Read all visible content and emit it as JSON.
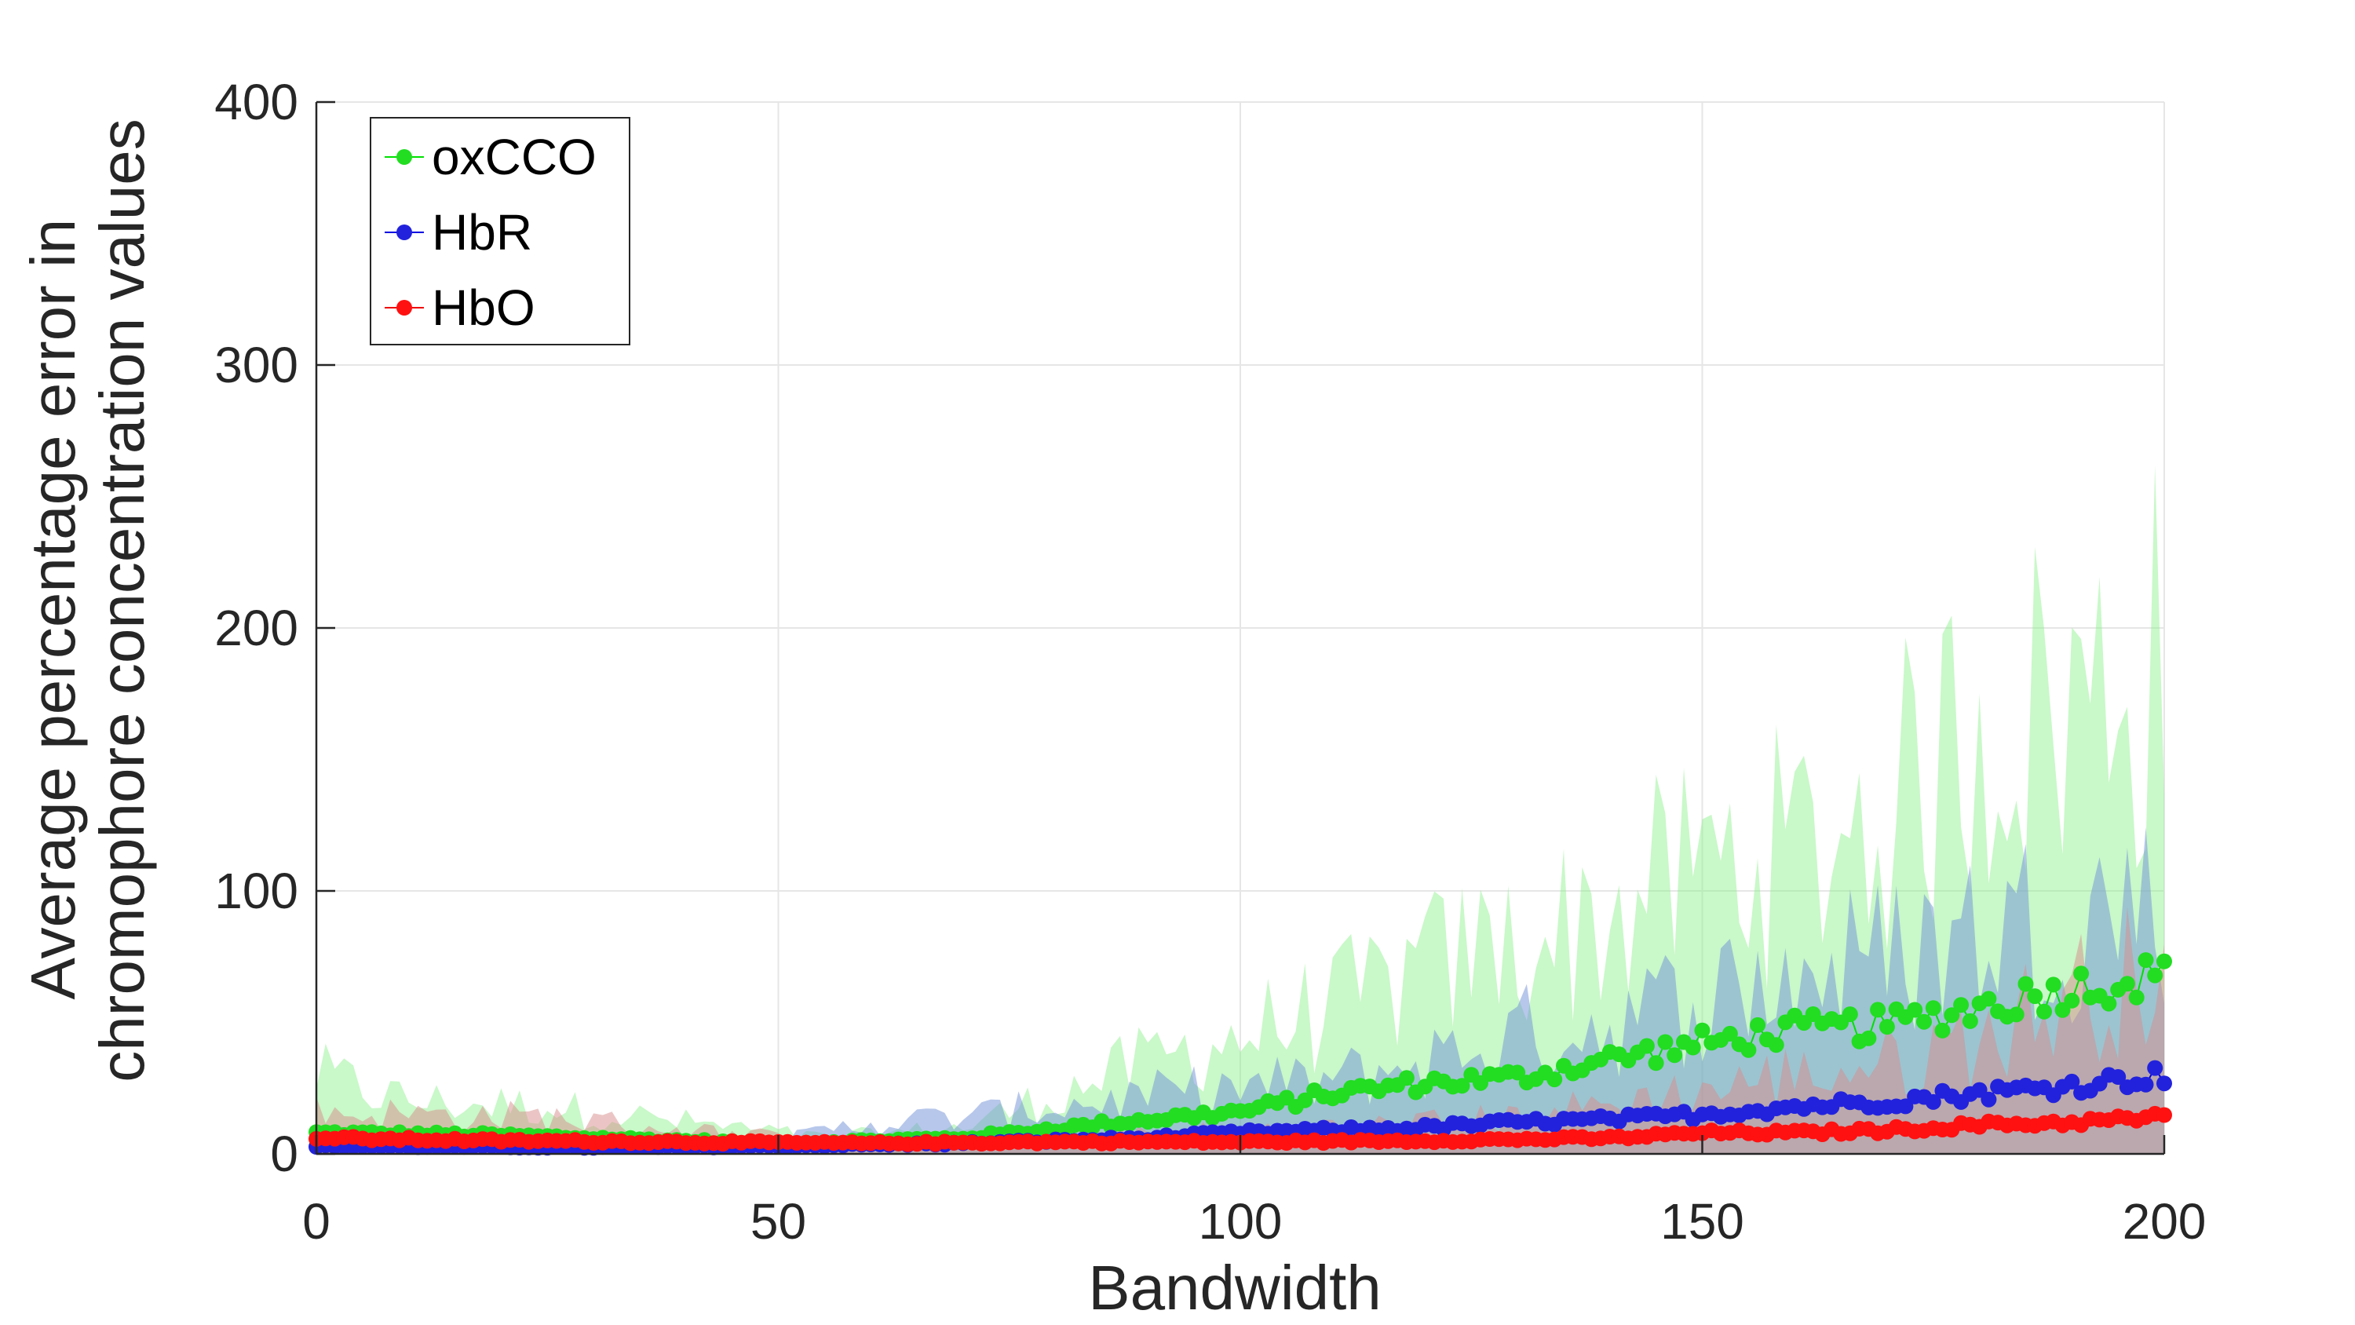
{
  "chart_data": {
    "type": "line",
    "xlabel": "Bandwidth",
    "ylabel_lines": [
      "Average percentage error in",
      "chromophore concentration values"
    ],
    "xlim": [
      0,
      200
    ],
    "ylim": [
      0,
      400
    ],
    "xticks": [
      0,
      50,
      100,
      150,
      200
    ],
    "yticks": [
      0,
      100,
      200,
      300,
      400
    ],
    "grid": true,
    "legend_position": "top-left",
    "series": [
      {
        "name": "oxCCO",
        "color": "#00e000",
        "marker_color": "#22dd22",
        "band_color": "#88f088",
        "control_mean": [
          [
            0,
            8
          ],
          [
            20,
            7
          ],
          [
            50,
            4
          ],
          [
            70,
            6
          ],
          [
            90,
            13
          ],
          [
            100,
            16
          ],
          [
            110,
            23
          ],
          [
            120,
            27
          ],
          [
            130,
            29
          ],
          [
            140,
            36
          ],
          [
            150,
            42
          ],
          [
            160,
            47
          ],
          [
            170,
            49
          ],
          [
            180,
            56
          ],
          [
            190,
            63
          ],
          [
            200,
            68
          ]
        ],
        "control_band": [
          [
            0,
            30
          ],
          [
            10,
            20
          ],
          [
            25,
            18
          ],
          [
            40,
            12
          ],
          [
            55,
            6
          ],
          [
            70,
            10
          ],
          [
            90,
            35
          ],
          [
            100,
            45
          ],
          [
            110,
            55
          ],
          [
            120,
            70
          ],
          [
            130,
            80
          ],
          [
            140,
            90
          ],
          [
            150,
            110
          ],
          [
            160,
            115
          ],
          [
            170,
            130
          ],
          [
            180,
            165
          ],
          [
            190,
            170
          ],
          [
            200,
            190
          ]
        ]
      },
      {
        "name": "HbR",
        "color": "#0000e0",
        "marker_color": "#2222dd",
        "band_color": "#6f8fd8",
        "control_mean": [
          [
            0,
            3
          ],
          [
            30,
            2.5
          ],
          [
            50,
            3
          ],
          [
            70,
            4
          ],
          [
            90,
            6
          ],
          [
            100,
            8
          ],
          [
            110,
            9
          ],
          [
            120,
            10
          ],
          [
            130,
            12
          ],
          [
            140,
            13
          ],
          [
            150,
            15
          ],
          [
            160,
            18
          ],
          [
            170,
            20
          ],
          [
            180,
            23
          ],
          [
            190,
            26
          ],
          [
            200,
            30
          ]
        ],
        "control_band": [
          [
            0,
            5
          ],
          [
            30,
            4
          ],
          [
            50,
            5
          ],
          [
            60,
            12
          ],
          [
            70,
            14
          ],
          [
            80,
            18
          ],
          [
            90,
            22
          ],
          [
            100,
            25
          ],
          [
            110,
            28
          ],
          [
            120,
            35
          ],
          [
            130,
            45
          ],
          [
            140,
            50
          ],
          [
            150,
            60
          ],
          [
            160,
            68
          ],
          [
            170,
            75
          ],
          [
            180,
            85
          ],
          [
            190,
            90
          ],
          [
            200,
            100
          ]
        ]
      },
      {
        "name": "HbO",
        "color": "#ee0000",
        "marker_color": "#ff1111",
        "band_color": "#d88c8c",
        "control_mean": [
          [
            0,
            6
          ],
          [
            20,
            5
          ],
          [
            40,
            4.5
          ],
          [
            60,
            4
          ],
          [
            80,
            4.5
          ],
          [
            100,
            4.5
          ],
          [
            120,
            5
          ],
          [
            140,
            6
          ],
          [
            150,
            8
          ],
          [
            160,
            8
          ],
          [
            170,
            9
          ],
          [
            180,
            11
          ],
          [
            190,
            12
          ],
          [
            200,
            14
          ]
        ],
        "control_band": [
          [
            0,
            16
          ],
          [
            10,
            15
          ],
          [
            25,
            14
          ],
          [
            40,
            9
          ],
          [
            55,
            5
          ],
          [
            70,
            6
          ],
          [
            90,
            8
          ],
          [
            110,
            10
          ],
          [
            130,
            14
          ],
          [
            150,
            24
          ],
          [
            160,
            30
          ],
          [
            170,
            34
          ],
          [
            180,
            45
          ],
          [
            190,
            60
          ],
          [
            200,
            70
          ]
        ]
      }
    ]
  }
}
